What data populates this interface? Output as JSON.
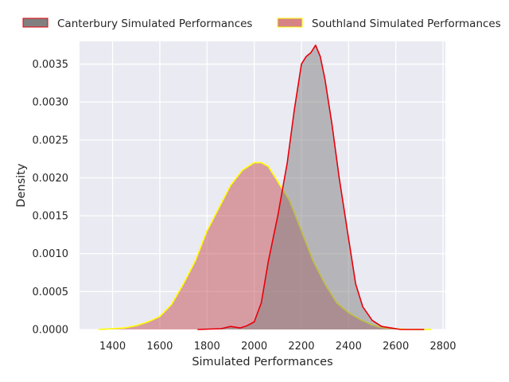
{
  "chart_data": {
    "type": "area",
    "title": "",
    "xlabel": "Simulated Performances",
    "ylabel": "Density",
    "xlim": [
      1260,
      2810
    ],
    "ylim": [
      0,
      0.0038
    ],
    "grid": true,
    "legend_position": "top",
    "x_ticks": [
      1400,
      1600,
      1800,
      2000,
      2200,
      2400,
      2600,
      2800
    ],
    "x_tick_labels": [
      "1400",
      "1600",
      "1800",
      "2000",
      "2200",
      "2400",
      "2600",
      "2800"
    ],
    "y_ticks": [
      0,
      0.0005,
      0.001,
      0.0015,
      0.002,
      0.0025,
      0.003,
      0.0035
    ],
    "y_tick_labels": [
      "0.0000",
      "0.0005",
      "0.0010",
      "0.0015",
      "0.0020",
      "0.0025",
      "0.0030",
      "0.0035"
    ],
    "series": [
      {
        "name": "Canterbury Simulated Performances",
        "fill": "#808080",
        "stroke": "#e8000b",
        "x": [
          1760,
          1860,
          1900,
          1940,
          1970,
          2000,
          2030,
          2060,
          2100,
          2140,
          2170,
          2200,
          2220,
          2240,
          2260,
          2280,
          2300,
          2330,
          2360,
          2400,
          2430,
          2460,
          2500,
          2540,
          2580,
          2620,
          2660,
          2720
        ],
        "y": [
          0.0,
          1e-05,
          4e-05,
          2e-05,
          5e-05,
          0.0001,
          0.00035,
          0.0009,
          0.0015,
          0.0022,
          0.0029,
          0.0035,
          0.0036,
          0.00365,
          0.00375,
          0.0036,
          0.0033,
          0.0027,
          0.002,
          0.0012,
          0.0006,
          0.0003,
          0.00012,
          4e-05,
          2e-05,
          0.0,
          0.0,
          0.0
        ]
      },
      {
        "name": "Southland Simulated Performances",
        "fill": "#c44e52",
        "stroke": "#ffff00",
        "x": [
          1340,
          1400,
          1450,
          1500,
          1550,
          1600,
          1650,
          1700,
          1750,
          1800,
          1850,
          1900,
          1950,
          2000,
          2030,
          2060,
          2100,
          2150,
          2200,
          2250,
          2300,
          2350,
          2400,
          2450,
          2500,
          2550,
          2600,
          2650,
          2700,
          2750
        ],
        "y": [
          0.0,
          1e-05,
          2e-05,
          5e-05,
          0.0001,
          0.00017,
          0.00033,
          0.0006,
          0.0009,
          0.0013,
          0.0016,
          0.0019,
          0.0021,
          0.0022,
          0.0022,
          0.00215,
          0.00195,
          0.0017,
          0.0013,
          0.0009,
          0.0006,
          0.00035,
          0.00022,
          0.00013,
          6e-05,
          2e-05,
          1e-05,
          0.0,
          0.0,
          0.0
        ]
      }
    ]
  }
}
